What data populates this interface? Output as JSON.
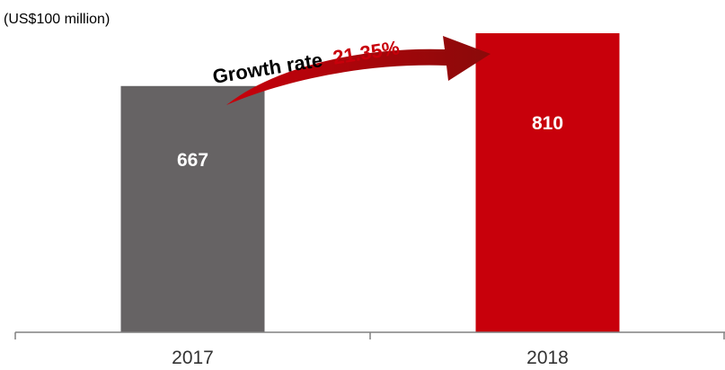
{
  "chart_data": {
    "type": "bar",
    "unit_label": "(US$100 million)",
    "categories": [
      "2017",
      "2018"
    ],
    "values": [
      667,
      810
    ],
    "value_labels": [
      "667",
      "810"
    ],
    "bar_colors": [
      "#666364",
      "#c8000b"
    ],
    "axis_color": "#808080",
    "ylim": [
      0,
      900
    ],
    "grid": false,
    "legend": "none",
    "annotation": {
      "prefix": "Growth rate",
      "value": "21.35%",
      "prefix_color": "#000000",
      "value_color": "#c8000b",
      "arrow_color_start": "#c8000b",
      "arrow_color_end": "#8a0a0a"
    }
  }
}
